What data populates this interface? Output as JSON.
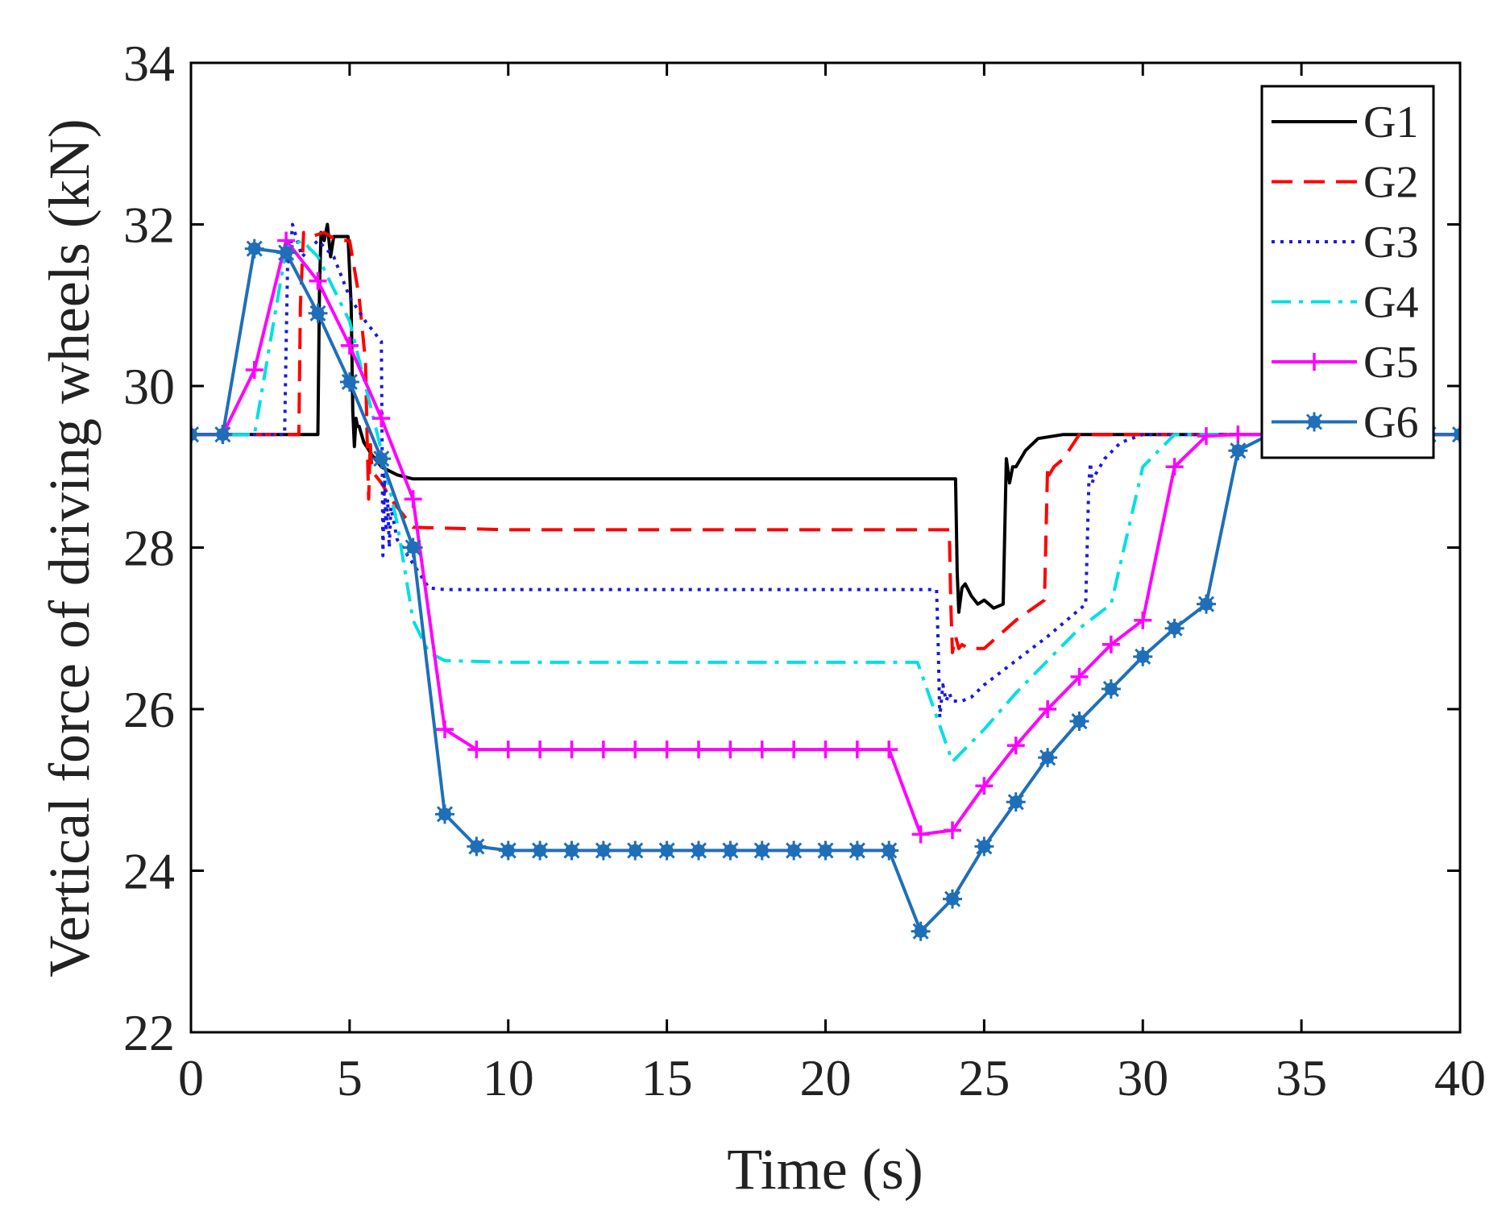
{
  "chart_data": {
    "type": "line",
    "title": "",
    "xlabel": "Time (s)",
    "ylabel": "Vertical force of driving wheels (kN)",
    "xlim": [
      0,
      40
    ],
    "ylim": [
      22,
      34
    ],
    "x_ticks": [
      0,
      5,
      10,
      15,
      20,
      25,
      30,
      35,
      40
    ],
    "y_ticks": [
      22,
      24,
      26,
      28,
      30,
      32,
      34
    ],
    "x_tick_labels": [
      "0",
      "5",
      "10",
      "15",
      "20",
      "25",
      "30",
      "35",
      "40"
    ],
    "y_tick_labels": [
      "22",
      "24",
      "26",
      "28",
      "30",
      "32",
      "34"
    ],
    "grid": false,
    "legend_position": "top-right",
    "series": [
      {
        "name": "G1",
        "color": "#000000",
        "style": "solid",
        "marker": "none",
        "x": [
          0,
          4.0,
          4.05,
          4.1,
          4.2,
          4.3,
          4.4,
          4.5,
          4.8,
          4.95,
          5.05,
          5.1,
          5.15,
          5.2,
          5.25,
          5.3,
          5.45,
          5.7,
          6.0,
          6.5,
          7.0,
          10,
          20,
          24.1,
          24.15,
          24.2,
          24.3,
          24.4,
          24.6,
          24.8,
          25.0,
          25.3,
          25.6,
          25.7,
          25.8,
          25.9,
          26.0,
          26.3,
          26.7,
          27.5,
          30,
          40
        ],
        "y": [
          29.4,
          29.4,
          31.2,
          31.9,
          31.8,
          32.0,
          31.6,
          31.85,
          31.85,
          31.85,
          31.0,
          29.7,
          29.25,
          29.6,
          29.5,
          29.5,
          29.3,
          29.15,
          29.0,
          28.9,
          28.85,
          28.85,
          28.85,
          28.85,
          27.7,
          27.2,
          27.5,
          27.55,
          27.4,
          27.3,
          27.35,
          27.25,
          27.3,
          29.1,
          28.8,
          29.0,
          29.0,
          29.2,
          29.35,
          29.4,
          29.4,
          29.4
        ]
      },
      {
        "name": "G2",
        "color": "#ff0000",
        "style": "dashed",
        "marker": "none",
        "x": [
          0,
          3.4,
          3.45,
          3.55,
          3.8,
          4.2,
          4.6,
          5.0,
          5.3,
          5.5,
          5.55,
          5.6,
          5.65,
          5.7,
          5.8,
          6.0,
          6.3,
          7.0,
          10,
          20,
          23.9,
          23.95,
          24.0,
          24.1,
          24.2,
          24.3,
          24.5,
          25.0,
          26.0,
          26.9,
          27.0,
          27.05,
          27.2,
          27.5,
          28.0,
          30,
          40
        ],
        "y": [
          29.4,
          29.4,
          31.0,
          31.9,
          31.85,
          31.9,
          31.8,
          31.8,
          31.1,
          30.3,
          29.4,
          28.6,
          29.3,
          29.0,
          28.9,
          28.8,
          28.6,
          28.25,
          28.22,
          28.22,
          28.22,
          27.3,
          26.7,
          26.9,
          26.75,
          26.8,
          26.75,
          26.75,
          27.1,
          27.35,
          29.0,
          28.9,
          29.0,
          29.1,
          29.4,
          29.4,
          29.4
        ]
      },
      {
        "name": "G3",
        "color": "#1a1adf",
        "style": "dotted",
        "marker": "none",
        "x": [
          0,
          2.95,
          3.0,
          3.05,
          3.1,
          3.2,
          3.5,
          4.0,
          4.5,
          5.0,
          5.5,
          6.0,
          6.05,
          6.1,
          6.15,
          6.2,
          6.25,
          6.3,
          6.5,
          7.0,
          7.5,
          8.0,
          10,
          20,
          23.5,
          23.55,
          23.6,
          23.7,
          23.8,
          23.9,
          24.0,
          24.3,
          24.6,
          25.0,
          26,
          27,
          28.2,
          28.3,
          28.35,
          28.4,
          28.5,
          28.8,
          29.3,
          30,
          40
        ],
        "y": [
          29.4,
          29.4,
          30.5,
          31.6,
          31.5,
          32.0,
          31.6,
          31.8,
          31.6,
          31.1,
          30.8,
          30.55,
          27.9,
          28.9,
          28.2,
          28.6,
          28.0,
          28.5,
          28.1,
          27.8,
          27.5,
          27.48,
          27.48,
          27.48,
          27.48,
          26.8,
          25.9,
          26.3,
          26.1,
          26.2,
          26.1,
          26.1,
          26.15,
          26.3,
          26.6,
          26.9,
          27.3,
          28.8,
          29.05,
          28.8,
          28.9,
          29.1,
          29.3,
          29.4,
          29.4
        ]
      },
      {
        "name": "G4",
        "color": "#00e0e0",
        "style": "dashdot",
        "marker": "none",
        "x": [
          0,
          2.0,
          3.0,
          3.5,
          4.0,
          5.0,
          6.0,
          6.5,
          7.0,
          7.5,
          8.0,
          10,
          20,
          22.9,
          24.0,
          25,
          26,
          27,
          28,
          29,
          30,
          31,
          40
        ],
        "y": [
          29.4,
          29.4,
          31.7,
          31.8,
          31.6,
          30.8,
          29.2,
          28.3,
          27.1,
          26.7,
          26.6,
          26.58,
          26.58,
          26.58,
          25.35,
          25.75,
          26.2,
          26.6,
          27.0,
          27.3,
          29.0,
          29.4,
          29.4
        ]
      },
      {
        "name": "G5",
        "color": "#ff00ff",
        "style": "solid",
        "marker": "plus",
        "x": [
          0,
          1,
          2,
          3,
          4,
          5,
          6,
          7,
          8,
          9,
          10,
          11,
          12,
          13,
          14,
          15,
          16,
          17,
          18,
          19,
          20,
          21,
          22,
          23,
          24,
          25,
          26,
          27,
          28,
          29,
          30,
          31,
          32,
          33,
          34,
          35,
          36,
          37,
          38,
          39,
          40
        ],
        "y": [
          29.4,
          29.4,
          30.2,
          31.8,
          31.3,
          30.5,
          29.6,
          28.6,
          25.75,
          25.5,
          25.5,
          25.5,
          25.5,
          25.5,
          25.5,
          25.5,
          25.5,
          25.5,
          25.5,
          25.5,
          25.5,
          25.5,
          25.5,
          24.45,
          24.5,
          25.05,
          25.55,
          26.0,
          26.4,
          26.8,
          27.1,
          29.0,
          29.38,
          29.4,
          29.4,
          29.4,
          29.4,
          29.4,
          29.4,
          29.4,
          29.4
        ]
      },
      {
        "name": "G6",
        "color": "#1f6fb8",
        "style": "solid",
        "marker": "asterisk",
        "x": [
          0,
          1,
          2,
          3,
          4,
          5,
          6,
          7,
          8,
          9,
          10,
          11,
          12,
          13,
          14,
          15,
          16,
          17,
          18,
          19,
          20,
          21,
          22,
          23,
          24,
          25,
          26,
          27,
          28,
          29,
          30,
          31,
          32,
          33,
          34,
          35,
          36,
          37,
          38,
          39,
          40
        ],
        "y": [
          29.4,
          29.4,
          31.7,
          31.65,
          30.9,
          30.05,
          29.1,
          28.0,
          24.7,
          24.3,
          24.25,
          24.25,
          24.25,
          24.25,
          24.25,
          24.25,
          24.25,
          24.25,
          24.25,
          24.25,
          24.25,
          24.25,
          24.25,
          23.25,
          23.65,
          24.3,
          24.85,
          25.4,
          25.85,
          26.25,
          26.65,
          27.0,
          27.3,
          29.2,
          29.4,
          29.4,
          29.4,
          29.4,
          29.4,
          29.4,
          29.4
        ]
      }
    ]
  }
}
